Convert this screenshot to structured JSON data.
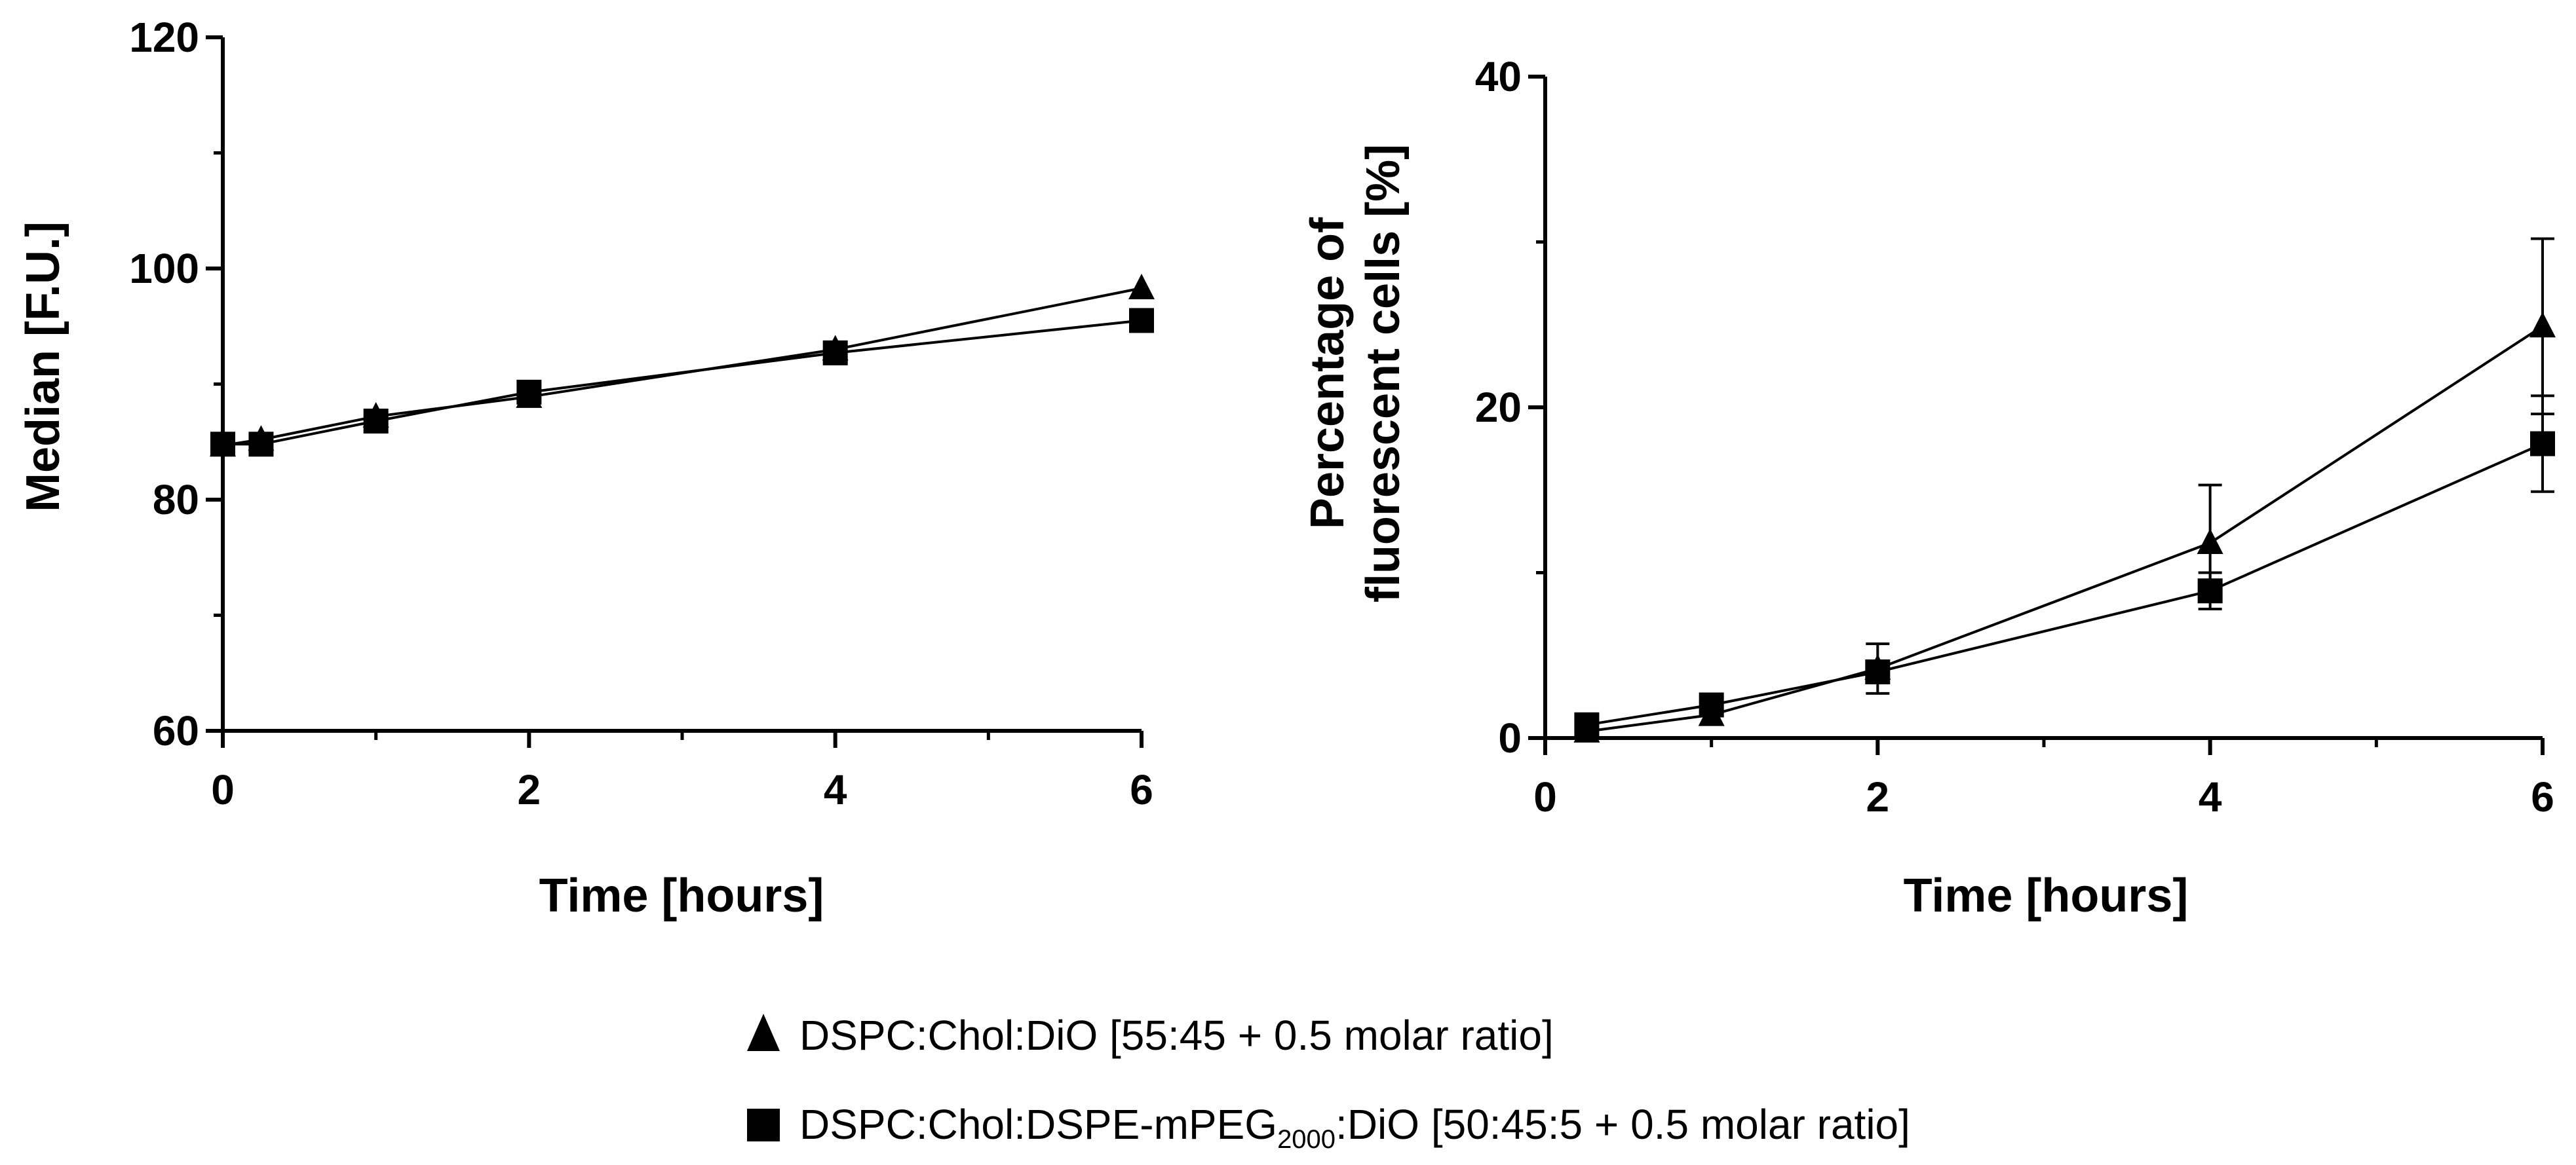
{
  "chart_data": [
    {
      "type": "line",
      "xlabel": "Time [hours]",
      "ylabel": "Median [F.U.]",
      "xlim": [
        0,
        6
      ],
      "ylim": [
        60,
        120
      ],
      "xticks": [
        0,
        2,
        4,
        6
      ],
      "xtick_labels": [
        "0",
        "2",
        "4",
        "6"
      ],
      "yticks": [
        60,
        80,
        100,
        120
      ],
      "ytick_labels": [
        "60",
        "80",
        "100",
        "120"
      ],
      "x_minor_ticks": [
        1,
        3,
        5
      ],
      "y_minor_ticks": [
        70,
        90,
        110
      ],
      "grid": false,
      "series": [
        {
          "name": "DSPC:Chol:DiO [55:45 + 0.5 molar ratio]",
          "marker": "triangle",
          "x": [
            0,
            0.25,
            1,
            2,
            4,
            6
          ],
          "y": [
            84.7,
            85.2,
            87.2,
            88.9,
            93.0,
            98.3
          ],
          "err": [
            0,
            0,
            0,
            0,
            0,
            0
          ]
        },
        {
          "name": "DSPC:Chol:DSPE-mPEG2000:DiO [50:45:5 + 0.5 molar ratio]",
          "marker": "square",
          "x": [
            0,
            0.25,
            1,
            2,
            4,
            6
          ],
          "y": [
            84.8,
            84.8,
            86.8,
            89.3,
            92.7,
            95.5
          ],
          "err": [
            0,
            0,
            0,
            0,
            0,
            0
          ]
        }
      ]
    },
    {
      "type": "line",
      "xlabel": "Time [hours]",
      "ylabel_lines": [
        "Percentage of",
        "fluorescent cells [%]"
      ],
      "xlim": [
        0,
        6
      ],
      "ylim": [
        0,
        40
      ],
      "xticks": [
        0,
        2,
        4,
        6
      ],
      "xtick_labels": [
        "0",
        "2",
        "4",
        "6"
      ],
      "yticks": [
        0,
        20,
        40
      ],
      "ytick_labels": [
        "0",
        "20",
        "40"
      ],
      "x_minor_ticks": [
        1,
        3,
        5
      ],
      "y_minor_ticks": [
        10,
        30
      ],
      "grid": false,
      "series": [
        {
          "name": "DSPC:Chol:DiO [55:45 + 0.5 molar ratio]",
          "marker": "triangle",
          "x": [
            0.25,
            1,
            2,
            4,
            6
          ],
          "y": [
            0.4,
            1.4,
            4.2,
            11.8,
            24.9
          ],
          "err": [
            0,
            0,
            1.5,
            3.5,
            5.3
          ]
        },
        {
          "name": "DSPC:Chol:DSPE-mPEG2000:DiO [50:45:5 + 0.5 molar ratio]",
          "marker": "square",
          "x": [
            0.25,
            1,
            2,
            4,
            6
          ],
          "y": [
            0.8,
            2.0,
            4.0,
            8.9,
            17.8
          ],
          "err": [
            0,
            0,
            0,
            1.1,
            2.9
          ]
        }
      ]
    }
  ],
  "legend": {
    "placement": "bottom-center",
    "items": [
      {
        "marker": "triangle",
        "label": "DSPC:Chol:DiO [55:45 + 0.5 molar ratio]"
      },
      {
        "marker": "square",
        "label_prefix": "DSPC:Chol:DSPE-mPEG",
        "label_subscript": "2000",
        "label_suffix": ":DiO [50:45:5 + 0.5 molar ratio]"
      }
    ]
  }
}
